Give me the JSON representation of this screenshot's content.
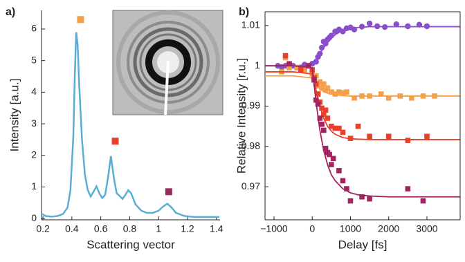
{
  "chart_data": [
    {
      "type": "line",
      "panel_label": "a)",
      "x_label": "Scattering vector",
      "y_label": "Intensity [a.u.]",
      "xlim": [
        0.19,
        1.425
      ],
      "ylim": [
        -0.04,
        6.59
      ],
      "xticks": [
        0.2,
        0.4,
        0.6,
        0.8,
        1,
        1.2,
        1.4
      ],
      "yticks": [
        0,
        1,
        2,
        3,
        4,
        5,
        6
      ],
      "color": "#5aaed6",
      "x": [
        0.19,
        0.22,
        0.26,
        0.3,
        0.34,
        0.37,
        0.39,
        0.41,
        0.42,
        0.43,
        0.44,
        0.45,
        0.47,
        0.49,
        0.51,
        0.53,
        0.55,
        0.57,
        0.59,
        0.61,
        0.63,
        0.65,
        0.67,
        0.69,
        0.71,
        0.73,
        0.75,
        0.77,
        0.79,
        0.81,
        0.84,
        0.88,
        0.92,
        0.96,
        1.0,
        1.03,
        1.06,
        1.09,
        1.12,
        1.18,
        1.25,
        1.35,
        1.42
      ],
      "values": [
        0.15,
        0.08,
        0.06,
        0.08,
        0.15,
        0.35,
        0.9,
        2.6,
        4.5,
        5.9,
        5.5,
        4.3,
        2.5,
        1.4,
        0.9,
        0.7,
        0.85,
        1.02,
        0.8,
        0.65,
        0.75,
        1.3,
        1.98,
        1.3,
        0.8,
        0.72,
        0.62,
        0.75,
        0.9,
        0.8,
        0.45,
        0.25,
        0.18,
        0.18,
        0.25,
        0.38,
        0.47,
        0.35,
        0.18,
        0.08,
        0.05,
        0.05,
        0.05
      ],
      "markers": [
        {
          "x": 0.46,
          "y": 6.3,
          "color": "#f4a04a"
        },
        {
          "x": 0.7,
          "y": 2.45,
          "color": "#e8402a"
        },
        {
          "x": 1.07,
          "y": 0.85,
          "color": "#9b2a5a"
        }
      ]
    },
    {
      "type": "scatter",
      "panel_label": "b)",
      "x_label": "Delay [fs]",
      "y_label": "Relative Intensity [r.u.]",
      "xlim": [
        -1235,
        3869
      ],
      "ylim": [
        0.9618,
        1.0134
      ],
      "xticks": [
        {
          "value": -1000,
          "label": "−1000"
        },
        0,
        1000,
        2000,
        3000
      ],
      "yticks": [
        0.97,
        0.98,
        0.99,
        1,
        1.01
      ],
      "fit_x": [
        -1235,
        -500,
        0,
        100,
        200,
        300,
        400,
        500,
        600,
        800,
        1000,
        1200,
        1500,
        2000,
        2500,
        3000,
        3860
      ],
      "series": [
        {
          "color": "#8a4fc8",
          "x": [
            -900,
            -800,
            -700,
            -500,
            -300,
            -200,
            -100,
            0,
            100,
            150,
            200,
            250,
            300,
            350,
            400,
            450,
            500,
            600,
            700,
            800,
            900,
            1000,
            1100,
            1300,
            1500,
            1700,
            1900,
            2200,
            2500,
            2800,
            3000
          ],
          "values": [
            1.0,
            0.9997,
            1.0,
            1.0,
            0.9995,
            1.0003,
            1.0,
            1.0005,
            1.001,
            1.0022,
            1.003,
            1.0045,
            1.006,
            1.0055,
            1.0065,
            1.007,
            1.0075,
            1.0085,
            1.009,
            1.0085,
            1.0093,
            1.0095,
            1.009,
            1.0097,
            1.0105,
            1.0098,
            1.0096,
            1.0103,
            1.0098,
            1.0102,
            1.0098
          ],
          "fit_values": [
            1.0,
            1.0,
            1.0003,
            1.0015,
            1.003,
            1.0045,
            1.0058,
            1.0068,
            1.0077,
            1.0088,
            1.0093,
            1.0095,
            1.0097,
            1.0097,
            1.0097,
            1.0097,
            1.0097
          ]
        },
        {
          "color": "#f4a04a",
          "x": [
            -800,
            -700,
            -600,
            -400,
            -200,
            0,
            100,
            150,
            200,
            250,
            300,
            350,
            400,
            500,
            600,
            700,
            800,
            900,
            1100,
            1300,
            1500,
            1800,
            2000,
            2300,
            2600,
            2900,
            3200
          ],
          "values": [
            0.9985,
            1.002,
            0.9995,
            0.9995,
            0.999,
            0.998,
            0.9975,
            0.995,
            0.996,
            0.9945,
            0.9955,
            0.994,
            0.9945,
            0.9935,
            0.993,
            0.9935,
            0.9933,
            0.9935,
            0.992,
            0.9925,
            0.9925,
            0.993,
            0.992,
            0.9925,
            0.992,
            0.9925,
            0.9925
          ],
          "fit_values": [
            0.9975,
            0.9975,
            0.997,
            0.9955,
            0.9943,
            0.9936,
            0.9932,
            0.993,
            0.9928,
            0.9926,
            0.9925,
            0.9925,
            0.9925,
            0.9925,
            0.9925,
            0.9925,
            0.9925
          ]
        },
        {
          "color": "#e8402a",
          "x": [
            -700,
            -300,
            0,
            50,
            100,
            150,
            200,
            250,
            300,
            350,
            400,
            500,
            600,
            700,
            800,
            1000,
            1200,
            1500,
            2000,
            2500,
            3000
          ],
          "values": [
            1.0025,
            0.999,
            0.999,
            0.997,
            0.9955,
            0.993,
            0.991,
            0.9895,
            0.988,
            0.989,
            0.987,
            0.985,
            0.9845,
            0.9845,
            0.9835,
            0.982,
            0.985,
            0.9825,
            0.9825,
            0.9815,
            0.9825
          ],
          "fit_values": [
            0.9985,
            0.9985,
            0.998,
            0.994,
            0.99,
            0.987,
            0.985,
            0.9838,
            0.983,
            0.9822,
            0.9819,
            0.9818,
            0.9817,
            0.9817,
            0.9817,
            0.9817,
            0.9817
          ]
        },
        {
          "color": "#a3245e",
          "x": [
            -600,
            -100,
            50,
            100,
            150,
            200,
            250,
            300,
            350,
            400,
            450,
            500,
            550,
            700,
            800,
            900,
            1000,
            1300,
            1500,
            2500,
            2900
          ],
          "values": [
            1.0005,
            1.0,
            0.9965,
            0.9915,
            0.9905,
            0.987,
            0.9855,
            0.984,
            0.9795,
            0.9785,
            0.978,
            0.9755,
            0.977,
            0.974,
            0.9715,
            0.9695,
            0.9665,
            0.9675,
            0.967,
            0.9695,
            0.9665
          ],
          "fit_values": [
            1.0,
            1.0,
            0.9995,
            0.991,
            0.984,
            0.979,
            0.9755,
            0.973,
            0.9715,
            0.9695,
            0.9685,
            0.968,
            0.9677,
            0.9675,
            0.9675,
            0.9675,
            0.9675
          ]
        }
      ]
    }
  ]
}
